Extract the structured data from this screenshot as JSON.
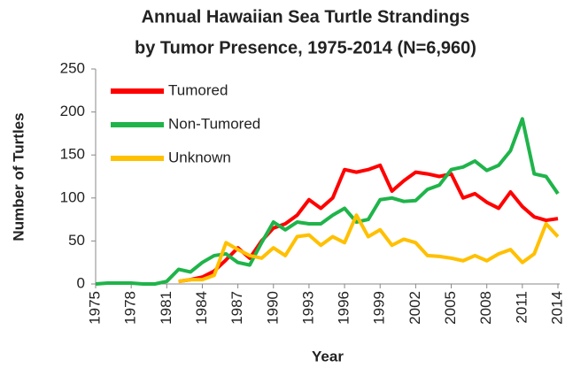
{
  "chart_data": {
    "type": "line",
    "title": [
      "Annual Hawaiian Sea Turtle Strandings",
      "by Tumor Presence, 1975-2014 (N=6,960)"
    ],
    "xlabel": "Year",
    "ylabel": "Number of Turtles",
    "x": [
      1975,
      1976,
      1977,
      1978,
      1979,
      1980,
      1981,
      1982,
      1983,
      1984,
      1985,
      1986,
      1987,
      1988,
      1989,
      1990,
      1991,
      1992,
      1993,
      1994,
      1995,
      1996,
      1997,
      1998,
      1999,
      2000,
      2001,
      2002,
      2003,
      2004,
      2005,
      2006,
      2007,
      2008,
      2009,
      2010,
      2011,
      2012,
      2013,
      2014
    ],
    "xlim": [
      1975,
      2014
    ],
    "xticks": [
      1975,
      1978,
      1981,
      1984,
      1987,
      1990,
      1993,
      1996,
      1999,
      2002,
      2005,
      2008,
      2011,
      2014
    ],
    "ylim": [
      0,
      250
    ],
    "yticks": [
      0,
      50,
      100,
      150,
      200,
      250
    ],
    "grid": false,
    "legend": "upper left",
    "series": [
      {
        "name": "Tumored",
        "color": "#ff0000",
        "values": [
          null,
          null,
          null,
          null,
          null,
          null,
          null,
          3,
          5,
          8,
          15,
          28,
          42,
          30,
          50,
          65,
          70,
          80,
          98,
          88,
          100,
          133,
          130,
          133,
          138,
          108,
          120,
          130,
          128,
          125,
          128,
          100,
          105,
          95,
          88,
          107,
          90,
          78,
          74,
          76
        ]
      },
      {
        "name": "Non-Tumored",
        "color": "#1fb44a",
        "values": [
          0,
          1,
          1,
          1,
          0,
          0,
          3,
          17,
          14,
          25,
          33,
          35,
          25,
          22,
          48,
          72,
          63,
          72,
          70,
          70,
          80,
          88,
          72,
          75,
          98,
          100,
          96,
          97,
          110,
          115,
          133,
          136,
          143,
          132,
          138,
          155,
          192,
          128,
          125,
          105
        ]
      },
      {
        "name": "Unknown",
        "color": "#ffc000",
        "values": [
          null,
          null,
          null,
          null,
          null,
          null,
          null,
          3,
          5,
          5,
          10,
          48,
          40,
          33,
          30,
          42,
          33,
          55,
          57,
          45,
          55,
          48,
          80,
          55,
          63,
          45,
          52,
          48,
          33,
          32,
          30,
          27,
          33,
          27,
          35,
          40,
          25,
          35,
          70,
          55
        ]
      }
    ]
  }
}
